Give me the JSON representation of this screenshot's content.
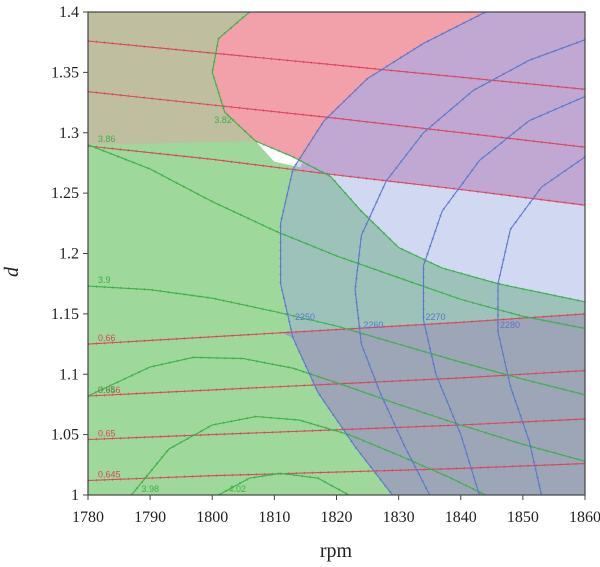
{
  "chart_data": {
    "type": "contour",
    "xlabel": "rpm",
    "ylabel": "d",
    "xlim": [
      1780,
      1860
    ],
    "ylim": [
      1,
      1.4
    ],
    "xticks": [
      "1780",
      "1790",
      "1800",
      "1810",
      "1820",
      "1830",
      "1840",
      "1850",
      "1860"
    ],
    "yticks": [
      "1",
      "1.05",
      "1.1",
      "1.15",
      "1.2",
      "1.25",
      "1.3",
      "1.35",
      "1.4"
    ],
    "colors": {
      "red_line": "#d9475c",
      "red_fill": "#f2a0aa",
      "green_line": "#3cb04a",
      "green_fill": "#9ed89a",
      "blue_line": "#5a78cc",
      "blue_fill": "#9aa8e2",
      "olive_region": "#bfbe9e",
      "purple_region": "#c0a8d2",
      "slate_region": "#9ca6b6",
      "white_region": "#ffffff",
      "frame": "#444444"
    },
    "series": [
      {
        "name": "red",
        "contours": [
          {
            "label": "",
            "points": [
              [
                1780,
                1.376
              ],
              [
                1800,
                1.366
              ],
              [
                1820,
                1.356
              ],
              [
                1840,
                1.346
              ],
              [
                1860,
                1.336
              ]
            ]
          },
          {
            "label": "",
            "points": [
              [
                1780,
                1.334
              ],
              [
                1800,
                1.323
              ],
              [
                1820,
                1.312
              ],
              [
                1840,
                1.3
              ],
              [
                1860,
                1.288
              ]
            ]
          },
          {
            "label": "",
            "points": [
              [
                1780,
                1.289
              ],
              [
                1800,
                1.278
              ],
              [
                1820,
                1.265
              ],
              [
                1840,
                1.253
              ],
              [
                1860,
                1.24
              ]
            ]
          },
          {
            "label": "0.66",
            "points": [
              [
                1780,
                1.125
              ],
              [
                1800,
                1.131
              ],
              [
                1820,
                1.137
              ],
              [
                1840,
                1.143
              ],
              [
                1860,
                1.15
              ]
            ]
          },
          {
            "label": "0.656",
            "points": [
              [
                1780,
                1.082
              ],
              [
                1800,
                1.087
              ],
              [
                1820,
                1.092
              ],
              [
                1840,
                1.097
              ],
              [
                1860,
                1.103
              ]
            ]
          },
          {
            "label": "0.65",
            "points": [
              [
                1780,
                1.046
              ],
              [
                1800,
                1.05
              ],
              [
                1820,
                1.054
              ],
              [
                1840,
                1.058
              ],
              [
                1860,
                1.063
              ]
            ]
          },
          {
            "label": "0.645",
            "points": [
              [
                1780,
                1.012
              ],
              [
                1800,
                1.016
              ],
              [
                1820,
                1.019
              ],
              [
                1840,
                1.022
              ],
              [
                1860,
                1.026
              ]
            ]
          }
        ]
      },
      {
        "name": "green",
        "contours": [
          {
            "label": "3.82",
            "points": [
              [
                1806,
                1.4
              ],
              [
                1801,
                1.378
              ],
              [
                1800,
                1.35
              ],
              [
                1802,
                1.317
              ],
              [
                1807,
                1.293
              ],
              [
                1813,
                1.28
              ],
              [
                1819,
                1.264
              ],
              [
                1824,
                1.235
              ],
              [
                1830,
                1.205
              ],
              [
                1837,
                1.188
              ],
              [
                1846,
                1.175
              ],
              [
                1860,
                1.16
              ]
            ]
          },
          {
            "label": "3.86",
            "points": [
              [
                1780,
                1.29
              ],
              [
                1790,
                1.27
              ],
              [
                1800,
                1.243
              ],
              [
                1810,
                1.219
              ],
              [
                1820,
                1.198
              ],
              [
                1830,
                1.18
              ],
              [
                1840,
                1.162
              ],
              [
                1850,
                1.148
              ],
              [
                1860,
                1.138
              ]
            ]
          },
          {
            "label": "3.9",
            "points": [
              [
                1780,
                1.173
              ],
              [
                1790,
                1.17
              ],
              [
                1800,
                1.163
              ],
              [
                1810,
                1.152
              ],
              [
                1820,
                1.14
              ],
              [
                1830,
                1.125
              ],
              [
                1840,
                1.11
              ],
              [
                1850,
                1.096
              ],
              [
                1860,
                1.083
              ]
            ]
          },
          {
            "label": "3.94",
            "points": [
              [
                1780,
                1.082
              ],
              [
                1790,
                1.106
              ],
              [
                1797,
                1.114
              ],
              [
                1805,
                1.113
              ],
              [
                1813,
                1.105
              ],
              [
                1820,
                1.093
              ],
              [
                1830,
                1.075
              ],
              [
                1840,
                1.058
              ],
              [
                1850,
                1.042
              ],
              [
                1860,
                1.028
              ]
            ]
          },
          {
            "label": "3.98",
            "points": [
              [
                1787,
                1.0
              ],
              [
                1793,
                1.038
              ],
              [
                1800,
                1.058
              ],
              [
                1807,
                1.065
              ],
              [
                1814,
                1.062
              ],
              [
                1822,
                1.05
              ],
              [
                1830,
                1.033
              ],
              [
                1838,
                1.015
              ],
              [
                1844,
                1.0
              ]
            ]
          },
          {
            "label": "4.02",
            "points": [
              [
                1801,
                1.0
              ],
              [
                1806,
                1.014
              ],
              [
                1811,
                1.018
              ],
              [
                1817,
                1.014
              ],
              [
                1822,
                1.0
              ]
            ]
          }
        ]
      },
      {
        "name": "blue",
        "contours": [
          {
            "label": "2250",
            "points": [
              [
                1844,
                1.4
              ],
              [
                1834,
                1.374
              ],
              [
                1825,
                1.345
              ],
              [
                1818,
                1.31
              ],
              [
                1813,
                1.27
              ],
              [
                1811,
                1.225
              ],
              [
                1811,
                1.175
              ],
              [
                1813,
                1.13
              ],
              [
                1817,
                1.085
              ],
              [
                1823,
                1.04
              ],
              [
                1829,
                1.0
              ]
            ]
          },
          {
            "label": "2260",
            "points": [
              [
                1860,
                1.377
              ],
              [
                1851,
                1.36
              ],
              [
                1842,
                1.335
              ],
              [
                1834,
                1.3
              ],
              [
                1828,
                1.26
              ],
              [
                1824,
                1.215
              ],
              [
                1823,
                1.17
              ],
              [
                1824,
                1.125
              ],
              [
                1827,
                1.085
              ],
              [
                1831,
                1.04
              ],
              [
                1835,
                1.0
              ]
            ]
          },
          {
            "label": "2270",
            "points": [
              [
                1860,
                1.33
              ],
              [
                1851,
                1.31
              ],
              [
                1843,
                1.277
              ],
              [
                1837,
                1.235
              ],
              [
                1834,
                1.19
              ],
              [
                1834,
                1.145
              ],
              [
                1836,
                1.1
              ],
              [
                1840,
                1.05
              ],
              [
                1843,
                1.0
              ]
            ]
          },
          {
            "label": "2280",
            "points": [
              [
                1860,
                1.28
              ],
              [
                1853,
                1.255
              ],
              [
                1848,
                1.22
              ],
              [
                1846,
                1.175
              ],
              [
                1846,
                1.135
              ],
              [
                1848,
                1.09
              ],
              [
                1851,
                1.045
              ],
              [
                1853,
                1.0
              ]
            ]
          }
        ]
      }
    ]
  }
}
